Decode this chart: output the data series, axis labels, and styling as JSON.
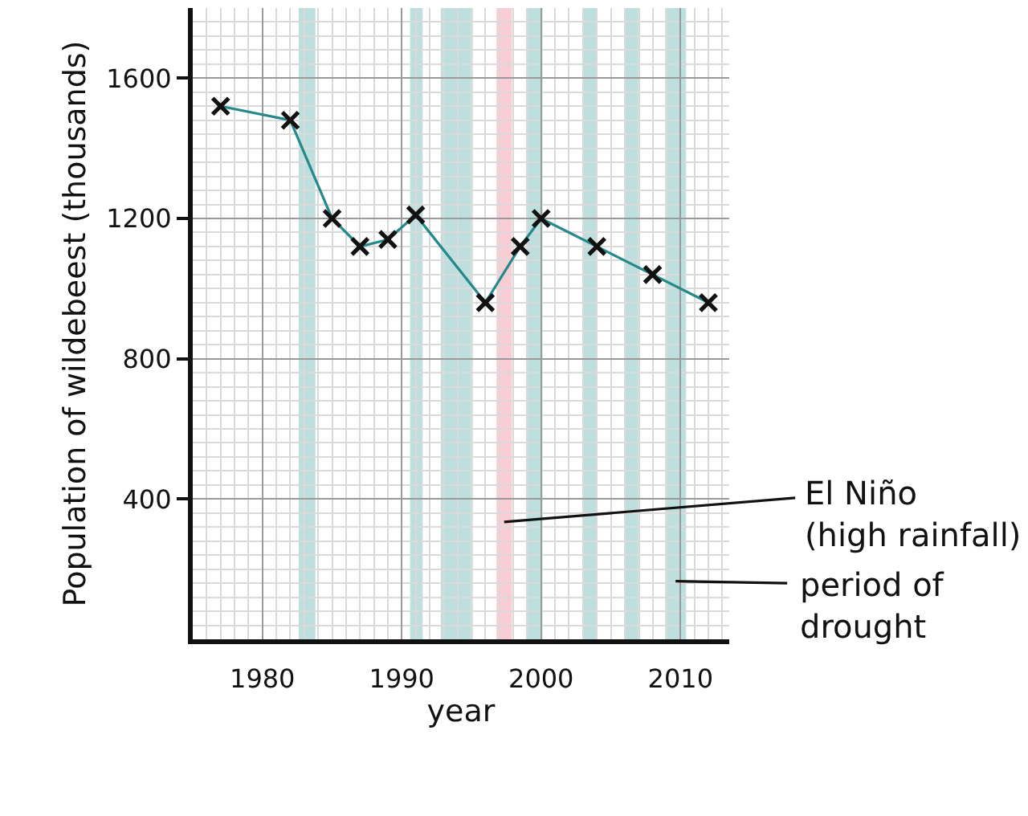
{
  "chart_data": {
    "type": "line",
    "xlabel": "year",
    "ylabel": "Population of wildebeest (thousands)",
    "series": [
      {
        "color": "#23898a",
        "x": [
          1977,
          1982,
          1985,
          1987,
          1989,
          1991,
          1996,
          1998.5,
          2000,
          2004,
          2008,
          2012
        ],
        "values": [
          1520,
          1480,
          1200,
          1120,
          1140,
          1210,
          960,
          1120,
          1200,
          1120,
          1040,
          960
        ]
      }
    ],
    "xlim": [
      1975,
      2013.5
    ],
    "ylim": [
      0,
      1800
    ],
    "xticks": [
      1980,
      1990,
      2000,
      2010
    ],
    "yticks": [
      400,
      800,
      1200,
      1600
    ],
    "grid": true,
    "marker": "cross",
    "line_style": "solid",
    "bands": [
      {
        "axis": "x",
        "from": 1982.6,
        "to": 1983.8,
        "color": "#bfdfdf"
      },
      {
        "axis": "x",
        "from": 1990.6,
        "to": 1991.5,
        "color": "#bfdfdf"
      },
      {
        "axis": "x",
        "from": 1992.8,
        "to": 1995.1,
        "color": "#bfdfdf"
      },
      {
        "axis": "x",
        "from": 1996.8,
        "to": 1997.9,
        "color": "#f9cdd4",
        "label": "El Niño\n(high rainfall)"
      },
      {
        "axis": "x",
        "from": 1999,
        "to": 2000.1,
        "color": "#bfdfdf"
      },
      {
        "axis": "x",
        "from": 2003,
        "to": 2004,
        "color": "#bfdfdf"
      },
      {
        "axis": "x",
        "from": 2006,
        "to": 2007.1,
        "color": "#bfdfdf"
      },
      {
        "axis": "x",
        "from": 2008.9,
        "to": 2010.4,
        "color": "#bfdfdf",
        "label": "period of\ndrought"
      }
    ]
  }
}
